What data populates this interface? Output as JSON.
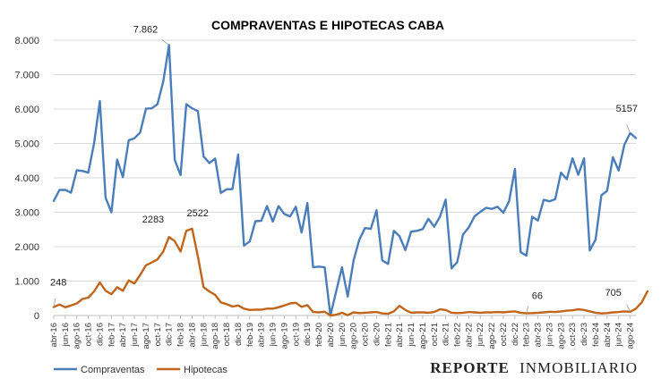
{
  "chart_data": {
    "type": "line",
    "title": "COMPRAVENTAS E HIPOTECAS CABA",
    "xlabel": "",
    "ylabel": "",
    "ylim": [
      0,
      8000
    ],
    "yticks": [
      "0",
      "1.000",
      "2.000",
      "3.000",
      "4.000",
      "5.000",
      "6.000",
      "7.000",
      "8.000"
    ],
    "yticks_values": [
      0,
      1000,
      2000,
      3000,
      4000,
      5000,
      6000,
      7000,
      8000
    ],
    "grid": true,
    "legend_position": "bottom-left",
    "start_month": "abr-16",
    "x_tick_labels": [
      "abr-16",
      "jun-16",
      "ago-16",
      "oct-16",
      "dic-16",
      "feb-17",
      "abr-17",
      "jun-17",
      "ago-17",
      "oct-17",
      "dic-17",
      "feb-18",
      "abr-18",
      "jun-18",
      "ago-18",
      "oct-18",
      "dic-18",
      "feb-19",
      "abr-19",
      "jun-19",
      "ago-19",
      "oct-19",
      "dic-19",
      "feb-20",
      "abr-20",
      "jun-20",
      "ago-20",
      "oct-20",
      "dic-20",
      "feb-21",
      "abr-21",
      "jun-21",
      "ago-21",
      "oct-21",
      "dic-21",
      "feb-22",
      "abr-22",
      "jun-22",
      "ago-22",
      "oct-22",
      "dic-22",
      "feb-23",
      "abr-23",
      "jun-23",
      "ago-23",
      "oct-23",
      "dic-23",
      "feb-24",
      "abr-24",
      "jun-24",
      "ago-24"
    ],
    "series": [
      {
        "name": "Compraventas",
        "color": "#4a7ebb",
        "values": [
          3330,
          3650,
          3650,
          3570,
          4220,
          4200,
          4150,
          5000,
          6230,
          3420,
          3000,
          4530,
          4020,
          5090,
          5150,
          5320,
          6010,
          6020,
          6140,
          6800,
          7862,
          4520,
          4080,
          6140,
          6020,
          5940,
          4620,
          4430,
          4560,
          3560,
          3670,
          3670,
          4680,
          2030,
          2150,
          2740,
          2750,
          3180,
          2730,
          3180,
          2950,
          2880,
          3160,
          2410,
          3270,
          1400,
          1420,
          1400,
          0,
          700,
          1400,
          550,
          1590,
          2200,
          2540,
          2520,
          3060,
          1600,
          1500,
          2460,
          2300,
          1900,
          2440,
          2460,
          2510,
          2810,
          2580,
          2870,
          3370,
          1370,
          1550,
          2350,
          2560,
          2880,
          3010,
          3130,
          3100,
          3160,
          2990,
          3320,
          4260,
          1840,
          1740,
          2870,
          2760,
          3360,
          3320,
          3380,
          4150,
          3960,
          4570,
          4090,
          4570,
          1890,
          2210,
          3490,
          3620,
          4600,
          4210,
          4960,
          5300,
          5157
        ]
      },
      {
        "name": "Hipotecas",
        "color": "#c0651a",
        "values": [
          248,
          320,
          240,
          290,
          350,
          480,
          520,
          700,
          960,
          720,
          620,
          820,
          720,
          1020,
          930,
          1180,
          1460,
          1540,
          1630,
          1860,
          2283,
          2160,
          1860,
          2460,
          2522,
          1720,
          820,
          700,
          600,
          380,
          330,
          260,
          290,
          200,
          160,
          170,
          170,
          200,
          200,
          240,
          290,
          350,
          370,
          250,
          300,
          100,
          90,
          110,
          0,
          20,
          80,
          10,
          90,
          70,
          80,
          90,
          100,
          60,
          50,
          120,
          280,
          160,
          80,
          90,
          90,
          80,
          100,
          180,
          160,
          80,
          70,
          80,
          100,
          90,
          80,
          90,
          90,
          100,
          90,
          110,
          120,
          80,
          66,
          70,
          80,
          90,
          110,
          100,
          120,
          140,
          150,
          180,
          160,
          120,
          80,
          60,
          70,
          90,
          100,
          120,
          110,
          200,
          380,
          705
        ]
      }
    ],
    "annotations": [
      {
        "text": "7.862",
        "series": 0,
        "index": 20
      },
      {
        "text": "5157",
        "series": 0,
        "index": 100
      },
      {
        "text": "248",
        "series": 1,
        "index": 0
      },
      {
        "text": "2283",
        "series": 1,
        "index": 20
      },
      {
        "text": "2522",
        "series": 1,
        "index": 24
      },
      {
        "text": "66",
        "series": 1,
        "index": 82
      },
      {
        "text": "705",
        "series": 1,
        "index": 100
      }
    ]
  },
  "brand": {
    "part1": "REPORTE",
    "part2": "INMOBILIARIO"
  }
}
